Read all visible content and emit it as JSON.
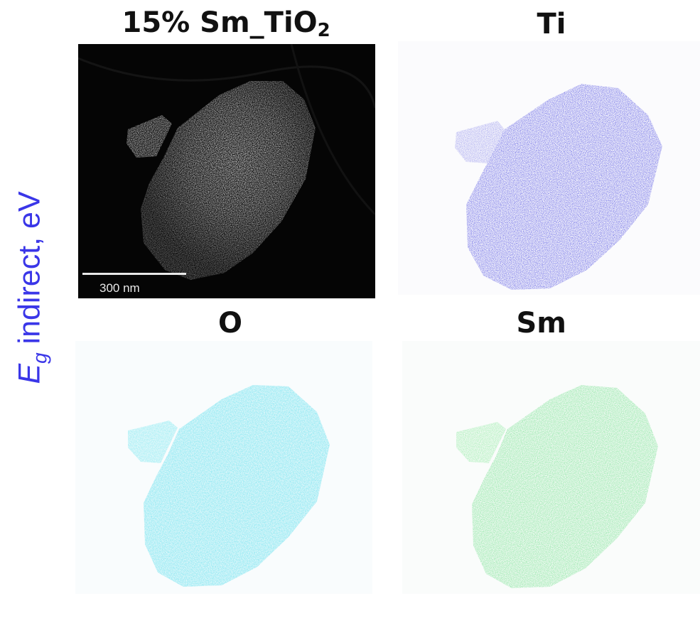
{
  "side_label": {
    "symbol": "E",
    "subscript": "g",
    "text": " indirect, eV",
    "color": "#3a36e8"
  },
  "panels": [
    {
      "title_main": "15% Sm_TiO",
      "title_sub": "2",
      "kind": "haadf",
      "scale_bar_label": "300 nm",
      "tint": "#ffffff"
    },
    {
      "title": "Ti",
      "kind": "eds-map",
      "tint": "#4a48e0"
    },
    {
      "title": "O",
      "kind": "eds-map",
      "tint": "#7fe6f0"
    },
    {
      "title": "Sm",
      "kind": "eds-map",
      "tint": "#7fe89a"
    }
  ]
}
